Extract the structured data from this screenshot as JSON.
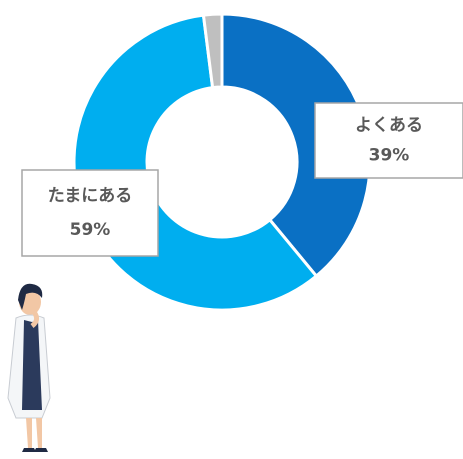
{
  "chart_data": {
    "type": "pie",
    "donut": true,
    "categories": [
      "よくある",
      "たまにある",
      null
    ],
    "values": [
      39,
      59,
      2
    ],
    "value_labels": [
      "39%",
      "59%",
      null
    ],
    "colors": [
      "#0a70c4",
      "#00aeef",
      "#bfbfbf"
    ]
  }
}
